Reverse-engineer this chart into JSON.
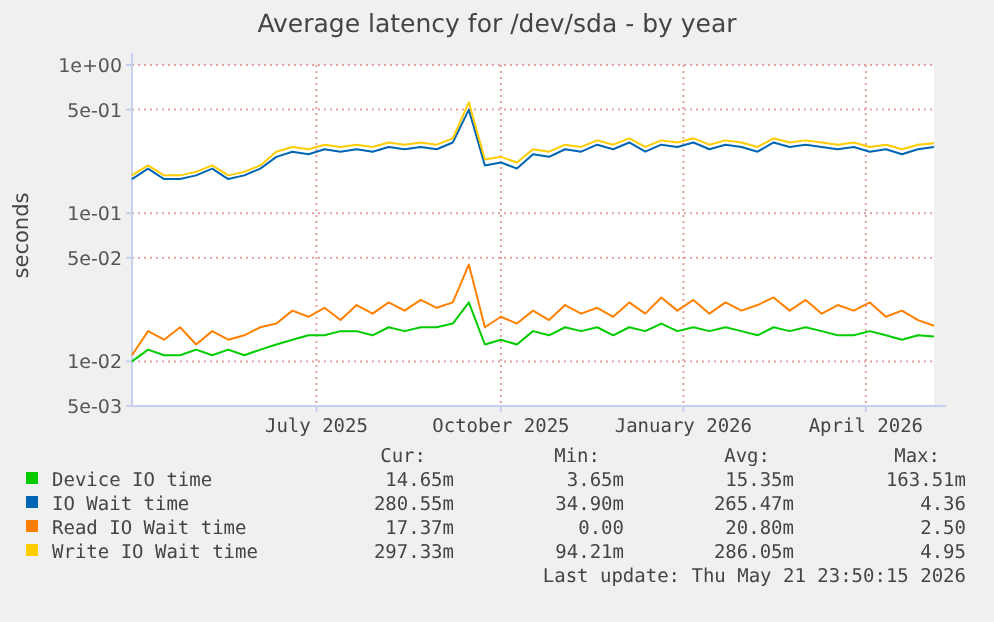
{
  "chart_data": {
    "type": "line",
    "title": "Average latency for /dev/sda - by year",
    "ylabel": "seconds",
    "log": "y",
    "grid": true,
    "legend": "bottom",
    "marker": "none",
    "line_style": "solid",
    "x": [
      "2025-04-16",
      "2025-04-24",
      "2025-05-02",
      "2025-05-10",
      "2025-05-18",
      "2025-05-26",
      "2025-06-03",
      "2025-06-11",
      "2025-06-19",
      "2025-06-27",
      "2025-07-05",
      "2025-07-13",
      "2025-07-21",
      "2025-07-29",
      "2025-08-06",
      "2025-08-14",
      "2025-08-22",
      "2025-08-30",
      "2025-09-07",
      "2025-09-15",
      "2025-09-23",
      "2025-10-01",
      "2025-10-09",
      "2025-10-17",
      "2025-10-25",
      "2025-11-02",
      "2025-11-10",
      "2025-11-18",
      "2025-11-26",
      "2025-12-04",
      "2025-12-12",
      "2025-12-20",
      "2025-12-28",
      "2026-01-05",
      "2026-01-13",
      "2026-01-21",
      "2026-01-29",
      "2026-02-06",
      "2026-02-14",
      "2026-02-22",
      "2026-03-02",
      "2026-03-10",
      "2026-03-18",
      "2026-03-26",
      "2026-04-03",
      "2026-04-11",
      "2026-04-19",
      "2026-04-27",
      "2026-05-05",
      "2026-05-13",
      "2026-05-21"
    ],
    "xlim": [
      "2025-04-16",
      "2026-05-21"
    ],
    "xticks": [
      {
        "value": "2025-07-17",
        "label": "July 2025"
      },
      {
        "value": "2025-10-17",
        "label": "October 2025"
      },
      {
        "value": "2026-01-16",
        "label": "January 2026"
      },
      {
        "value": "2026-04-17",
        "label": "April 2026"
      }
    ],
    "ylim": [
      0.005,
      1
    ],
    "yticks": [
      {
        "value": 0.005,
        "label": "5e-03"
      },
      {
        "value": 0.01,
        "label": "1e-02"
      },
      {
        "value": 0.05,
        "label": "5e-02"
      },
      {
        "value": 0.1,
        "label": "1e-01"
      },
      {
        "value": 0.5,
        "label": "5e-01"
      },
      {
        "value": 1,
        "label": "1e+00"
      }
    ],
    "series": [
      {
        "name": "Device IO time",
        "color": "#00cc00",
        "values": [
          0.01,
          0.012,
          0.011,
          0.011,
          0.012,
          0.011,
          0.012,
          0.011,
          0.012,
          0.013,
          0.014,
          0.015,
          0.015,
          0.016,
          0.016,
          0.015,
          0.017,
          0.016,
          0.017,
          0.017,
          0.018,
          0.025,
          0.013,
          0.014,
          0.013,
          0.016,
          0.015,
          0.017,
          0.016,
          0.017,
          0.015,
          0.017,
          0.016,
          0.018,
          0.016,
          0.017,
          0.016,
          0.017,
          0.016,
          0.015,
          0.017,
          0.016,
          0.017,
          0.016,
          0.015,
          0.015,
          0.016,
          0.015,
          0.014,
          0.015,
          0.0147
        ]
      },
      {
        "name": "IO Wait time",
        "color": "#0066b3",
        "values": [
          0.17,
          0.2,
          0.17,
          0.17,
          0.18,
          0.2,
          0.17,
          0.18,
          0.2,
          0.24,
          0.26,
          0.25,
          0.27,
          0.26,
          0.27,
          0.26,
          0.28,
          0.27,
          0.28,
          0.27,
          0.3,
          0.5,
          0.21,
          0.22,
          0.2,
          0.25,
          0.24,
          0.27,
          0.26,
          0.29,
          0.27,
          0.3,
          0.26,
          0.29,
          0.28,
          0.3,
          0.27,
          0.29,
          0.28,
          0.26,
          0.3,
          0.28,
          0.29,
          0.28,
          0.27,
          0.28,
          0.26,
          0.27,
          0.25,
          0.27,
          0.28
        ]
      },
      {
        "name": "Read IO Wait time",
        "color": "#ff8000",
        "values": [
          0.011,
          0.016,
          0.014,
          0.017,
          0.013,
          0.016,
          0.014,
          0.015,
          0.017,
          0.018,
          0.022,
          0.02,
          0.023,
          0.019,
          0.024,
          0.021,
          0.025,
          0.022,
          0.026,
          0.023,
          0.025,
          0.045,
          0.017,
          0.02,
          0.018,
          0.022,
          0.019,
          0.024,
          0.021,
          0.023,
          0.02,
          0.025,
          0.021,
          0.027,
          0.022,
          0.026,
          0.021,
          0.025,
          0.022,
          0.024,
          0.027,
          0.022,
          0.026,
          0.021,
          0.024,
          0.022,
          0.025,
          0.02,
          0.022,
          0.019,
          0.0174
        ]
      },
      {
        "name": "Write IO Wait time",
        "color": "#ffcc00",
        "values": [
          0.18,
          0.21,
          0.18,
          0.18,
          0.19,
          0.21,
          0.18,
          0.19,
          0.21,
          0.26,
          0.28,
          0.27,
          0.29,
          0.28,
          0.29,
          0.28,
          0.3,
          0.29,
          0.3,
          0.29,
          0.32,
          0.56,
          0.23,
          0.24,
          0.22,
          0.27,
          0.26,
          0.29,
          0.28,
          0.31,
          0.29,
          0.32,
          0.28,
          0.31,
          0.3,
          0.32,
          0.29,
          0.31,
          0.3,
          0.28,
          0.32,
          0.3,
          0.31,
          0.3,
          0.29,
          0.3,
          0.28,
          0.29,
          0.27,
          0.29,
          0.297
        ]
      }
    ],
    "annotations": [
      "Cur:",
      "Min:",
      "Avg:",
      "Max:",
      "14.65m",
      "3.65m",
      "15.35m",
      "163.51m",
      "280.55m",
      "34.90m",
      "265.47m",
      "4.36",
      "17.37m",
      "0.00",
      "20.80m",
      "2.50",
      "297.33m",
      "94.21m",
      "286.05m",
      "4.95",
      "Last update: Thu May 21 23:50:15 2026"
    ]
  }
}
